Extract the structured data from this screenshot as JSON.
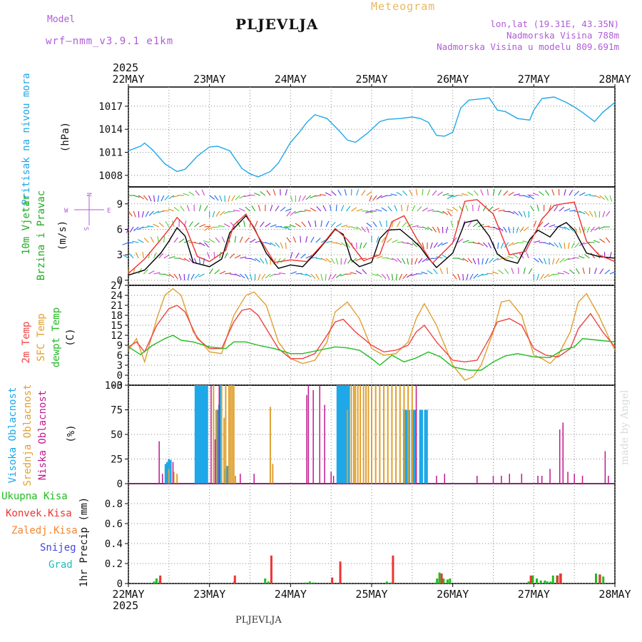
{
  "header": {
    "model_label": "Model",
    "model_version": "wrf—nmm_v3.9.1 e1km",
    "location": "PLJEVLJA",
    "chart_kind": "Meteogram",
    "lonlat": "lon,lat (19.31E, 43.35N)",
    "altitude": "Nadmorska Visina 788m",
    "model_altitude": "Nadmorska Visina u modelu 809.691m"
  },
  "footer": {
    "location": "PLJEVLJA",
    "watermark": "made by Angel"
  },
  "colors": {
    "pressure": "#1ea8e8",
    "temp2m": "#ee4444",
    "sfc": "#e0a030",
    "dewpt": "#22bb22",
    "high_cloud": "#1ea8e8",
    "mid_cloud": "#e0a030",
    "low_cloud": "#c01890",
    "total_precip": "#22bb22",
    "conv_precip": "#ee3333",
    "frz_precip": "#ee8833",
    "snow": "#4444dd",
    "hail": "#22bbbb",
    "wind_label": "#22aa22",
    "compass": "#b05cd8"
  },
  "chart_data": [
    {
      "panel": "pressure",
      "type": "line",
      "ylabel": [
        "Pritisak na nivou mora",
        "(hPa)"
      ],
      "yticks": [
        1008,
        1011,
        1014,
        1017
      ],
      "ylim": [
        1006.5,
        1019.5
      ],
      "xlabels_top": [
        "22MAY",
        "23MAY",
        "24MAY",
        "25MAY",
        "26MAY",
        "27MAY",
        "28MAY"
      ],
      "year_top": "2025",
      "series": [
        {
          "x": [
            0,
            0.15,
            0.2,
            0.3,
            0.45,
            0.6,
            0.7,
            0.85,
            1.0,
            1.1,
            1.25,
            1.4,
            1.5,
            1.6,
            1.75,
            1.85,
            2.0,
            2.1,
            2.2,
            2.3,
            2.45,
            2.6,
            2.7,
            2.8,
            2.95,
            3.1,
            3.2,
            3.35,
            3.5,
            3.6,
            3.7,
            3.8,
            3.9,
            4.0,
            4.1,
            4.2,
            4.3,
            4.45,
            4.55,
            4.65,
            4.8,
            4.95,
            5.0,
            5.1,
            5.25,
            5.4,
            5.5,
            5.6,
            5.75,
            5.85,
            6.0
          ],
          "y": [
            1011.2,
            1011.8,
            1012.2,
            1011.3,
            1009.5,
            1008.5,
            1008.8,
            1010.5,
            1011.7,
            1011.8,
            1011.2,
            1008.9,
            1008.2,
            1007.8,
            1008.5,
            1009.6,
            1012.3,
            1013.5,
            1014.9,
            1015.9,
            1015.4,
            1013.8,
            1012.6,
            1012.3,
            1013.5,
            1015.0,
            1015.3,
            1015.4,
            1015.6,
            1015.4,
            1014.9,
            1013.2,
            1013.1,
            1013.6,
            1016.8,
            1017.8,
            1017.9,
            1018.1,
            1016.5,
            1016.3,
            1015.4,
            1015.2,
            1016.5,
            1018.0,
            1018.2,
            1017.5,
            1016.9,
            1016.2,
            1015.0,
            1016.2,
            1017.5
          ]
        }
      ]
    },
    {
      "panel": "wind",
      "type": "line",
      "ylabel": [
        "10m Vjetar",
        "Brzina i Pravac",
        "(m/s)"
      ],
      "yticks": [
        0,
        3,
        6,
        9
      ],
      "ylim": [
        -0.6,
        11
      ],
      "compass": {
        "north": "N",
        "south": "S",
        "west": "W",
        "east": "E"
      },
      "series": [
        {
          "name": "speed",
          "x": [
            0,
            0.2,
            0.4,
            0.5,
            0.6,
            0.7,
            0.8,
            1.0,
            1.15,
            1.25,
            1.35,
            1.45,
            1.55,
            1.7,
            1.85,
            2.0,
            2.15,
            2.3,
            2.45,
            2.55,
            2.65,
            2.75,
            2.85,
            3.0,
            3.1,
            3.2,
            3.35,
            3.5,
            3.6,
            3.7,
            3.8,
            4.0,
            4.15,
            4.3,
            4.45,
            4.55,
            4.65,
            4.8,
            4.95,
            5.05,
            5.2,
            5.3,
            5.4,
            5.5,
            5.65,
            5.8,
            6.0
          ],
          "y": [
            0.6,
            1.2,
            3.2,
            4.6,
            6.2,
            5.2,
            2.1,
            1.6,
            2.5,
            5.6,
            6.6,
            7.6,
            6.2,
            3.2,
            1.4,
            1.8,
            1.6,
            3.1,
            4.8,
            6.0,
            5.4,
            2.4,
            1.6,
            2.1,
            4.9,
            5.9,
            6.0,
            4.8,
            3.9,
            2.6,
            1.5,
            3.2,
            6.8,
            7.1,
            5.2,
            3.1,
            2.4,
            2.0,
            4.8,
            5.9,
            5.1,
            6.3,
            6.8,
            5.9,
            3.2,
            2.8,
            2.6
          ]
        },
        {
          "name": "gust",
          "x": [
            0,
            0.2,
            0.4,
            0.5,
            0.6,
            0.7,
            0.85,
            1.0,
            1.2,
            1.3,
            1.45,
            1.6,
            1.8,
            2.0,
            2.2,
            2.4,
            2.55,
            2.7,
            2.9,
            3.1,
            3.25,
            3.4,
            3.55,
            3.75,
            4.0,
            4.15,
            4.3,
            4.5,
            4.7,
            4.9,
            5.1,
            5.25,
            5.35,
            5.5,
            5.65,
            5.8,
            6.0
          ],
          "y": [
            0.8,
            2.5,
            4.8,
            6.0,
            7.4,
            6.4,
            2.8,
            2.2,
            3.5,
            6.5,
            7.8,
            5.2,
            2.1,
            2.4,
            2.2,
            4.3,
            6.1,
            4.8,
            2.3,
            3.0,
            6.9,
            7.6,
            5.0,
            2.0,
            4.4,
            9.3,
            9.5,
            7.8,
            3.0,
            3.4,
            7.2,
            8.8,
            9.0,
            9.2,
            4.6,
            3.0,
            2.2
          ]
        }
      ]
    },
    {
      "panel": "temperature",
      "type": "line",
      "ylabel": [
        "2m Temp",
        "SFC Temp",
        "dewpt Temp",
        "(C)"
      ],
      "yticks": [
        -3,
        0,
        3,
        6,
        9,
        12,
        15,
        18,
        21,
        24,
        27
      ],
      "ylim": [
        -3,
        27
      ],
      "series": [
        {
          "name": "2m Temp",
          "x": [
            0,
            0.1,
            0.2,
            0.35,
            0.5,
            0.6,
            0.7,
            0.85,
            1.0,
            1.15,
            1.3,
            1.4,
            1.5,
            1.6,
            1.75,
            1.85,
            2.0,
            2.15,
            2.3,
            2.45,
            2.55,
            2.65,
            2.8,
            3.0,
            3.15,
            3.3,
            3.45,
            3.55,
            3.65,
            3.8,
            4.0,
            4.15,
            4.3,
            4.45,
            4.55,
            4.7,
            4.85,
            5.0,
            5.15,
            5.3,
            5.45,
            5.55,
            5.7,
            5.85,
            6.0
          ],
          "y": [
            8.5,
            10,
            7,
            15,
            20,
            21,
            19,
            11,
            8,
            8,
            16,
            19.5,
            20,
            18,
            12,
            8,
            5,
            5,
            6.5,
            12,
            16,
            16.8,
            13,
            9,
            7,
            7.5,
            9,
            13,
            15,
            10,
            4.5,
            4,
            4.5,
            11,
            16,
            17,
            15,
            8,
            6,
            5.5,
            8,
            14,
            18.5,
            13,
            8.5
          ]
        },
        {
          "name": "SFC Temp",
          "x": [
            0,
            0.1,
            0.2,
            0.35,
            0.45,
            0.55,
            0.65,
            0.8,
            1.0,
            1.15,
            1.3,
            1.45,
            1.55,
            1.7,
            1.85,
            2.0,
            2.15,
            2.3,
            2.45,
            2.55,
            2.7,
            2.85,
            3.0,
            3.15,
            3.3,
            3.45,
            3.55,
            3.65,
            3.8,
            4.0,
            4.15,
            4.25,
            4.35,
            4.5,
            4.6,
            4.7,
            4.85,
            5.0,
            5.1,
            5.2,
            5.3,
            5.45,
            5.55,
            5.65,
            5.8,
            5.95,
            6.0
          ],
          "y": [
            7.5,
            11,
            4,
            17,
            24,
            26,
            24,
            13,
            7,
            6.5,
            18,
            24,
            25,
            21,
            10,
            5,
            3.5,
            4.5,
            10,
            19,
            22,
            17,
            8,
            6,
            6.5,
            10,
            17,
            21.5,
            15,
            3,
            -1.5,
            -0.5,
            3,
            13,
            22,
            22.5,
            18,
            6,
            5,
            3.5,
            6,
            13,
            22,
            24.5,
            18,
            10,
            7.5
          ]
        },
        {
          "name": "dewpt Temp",
          "x": [
            0,
            0.15,
            0.3,
            0.45,
            0.55,
            0.65,
            0.8,
            1.0,
            1.2,
            1.3,
            1.45,
            1.6,
            1.8,
            2.0,
            2.15,
            2.35,
            2.55,
            2.7,
            2.85,
            3.0,
            3.1,
            3.25,
            3.4,
            3.55,
            3.7,
            3.85,
            4.0,
            4.2,
            4.35,
            4.5,
            4.65,
            4.8,
            5.0,
            5.2,
            5.35,
            5.5,
            5.6,
            5.8,
            6.0
          ],
          "y": [
            8.5,
            6.2,
            9,
            11,
            12,
            10.5,
            10,
            8.5,
            8,
            10,
            10,
            9,
            8,
            6.5,
            6.5,
            7.5,
            8.5,
            8.2,
            7.5,
            5,
            3,
            6,
            4,
            5.2,
            7,
            5.5,
            2.5,
            1.5,
            1.5,
            4,
            5.8,
            6.5,
            5.5,
            5.3,
            7.5,
            8.5,
            11,
            10.5,
            10
          ]
        }
      ]
    },
    {
      "panel": "clouds",
      "type": "bar",
      "ylabel": [
        "Visoka Oblacnost",
        "Srednja Oblacnost",
        "Niska Oblacnost",
        "(%)"
      ],
      "yticks": [
        0,
        25,
        50,
        75,
        100
      ],
      "ylim": [
        0,
        100
      ],
      "series": [
        {
          "name": "Visoka Oblacnost",
          "x": [
            0.46,
            0.48,
            0.5,
            0.52,
            0.83,
            0.85,
            0.87,
            0.89,
            0.91,
            0.93,
            0.95,
            0.97,
            1.1,
            1.12,
            1.14,
            1.2,
            1.22,
            2.58,
            2.6,
            2.62,
            2.64,
            2.66,
            2.68,
            2.7,
            2.72,
            3.4,
            3.42,
            3.44,
            3.46,
            3.5,
            3.52,
            3.54,
            3.6,
            3.62,
            3.66,
            3.68
          ],
          "y": [
            20,
            22,
            25,
            24,
            100,
            100,
            100,
            100,
            100,
            100,
            100,
            100,
            75,
            80,
            100,
            15,
            18,
            100,
            100,
            100,
            100,
            100,
            100,
            100,
            100,
            75,
            75,
            75,
            75,
            75,
            75,
            75,
            75,
            75,
            75,
            75
          ]
        },
        {
          "name": "Srednja Oblacnost",
          "x": [
            0.5,
            0.56,
            0.6,
            1.05,
            1.08,
            1.15,
            1.18,
            1.2,
            1.24,
            1.26,
            1.28,
            1.3,
            1.32,
            1.75,
            1.78,
            2.7,
            2.75,
            2.78,
            2.8,
            2.83,
            2.86,
            2.9,
            2.93,
            2.96,
            3.0,
            3.05,
            3.1,
            3.15,
            3.2,
            3.25,
            3.3,
            3.35,
            3.4,
            3.45,
            3.5
          ],
          "y": [
            15,
            12,
            10,
            100,
            75,
            100,
            67,
            100,
            100,
            100,
            100,
            100,
            8,
            78,
            20,
            75,
            100,
            100,
            100,
            100,
            100,
            100,
            100,
            100,
            100,
            100,
            100,
            100,
            100,
            100,
            100,
            100,
            100,
            100,
            100
          ]
        },
        {
          "name": "Niska Oblacnost",
          "x": [
            0.38,
            0.42,
            0.55,
            1.02,
            1.07,
            1.12,
            1.38,
            1.55,
            2.2,
            2.22,
            2.28,
            2.36,
            2.42,
            2.5,
            2.53,
            3.55,
            3.8,
            3.9,
            4.3,
            4.5,
            4.6,
            4.7,
            4.85,
            5.05,
            5.1,
            5.2,
            5.32,
            5.36,
            5.42,
            5.5,
            5.6,
            5.88,
            5.92
          ],
          "y": [
            43,
            10,
            22,
            100,
            45,
            100,
            10,
            10,
            90,
            100,
            95,
            100,
            80,
            12,
            8,
            100,
            8,
            10,
            8,
            8,
            8,
            10,
            10,
            8,
            8,
            15,
            55,
            62,
            12,
            10,
            8,
            33,
            8
          ]
        }
      ]
    },
    {
      "panel": "precipitation",
      "type": "bar",
      "ylabel": [
        "1hr Precip (mm)"
      ],
      "legend": [
        "Ukupna Kisa",
        "Konvek.Kisa",
        "Zaledj.Kisa",
        "Snijeg",
        "Grad"
      ],
      "yticks": [
        0,
        0.2,
        0.4,
        0.6,
        0.8
      ],
      "ylim": [
        0,
        1.0
      ],
      "series": [
        {
          "name": "Ukupna Kisa",
          "x": [
            0.33,
            0.36,
            0.4,
            1.32,
            1.7,
            1.74,
            2.2,
            2.25,
            2.3,
            3.2,
            3.25,
            3.8,
            3.82,
            3.85,
            3.9,
            3.95,
            3.98,
            4.95,
            5.0,
            5.05,
            5.1,
            5.15,
            5.18,
            5.22,
            5.25,
            5.3,
            5.34,
            5.78,
            5.83,
            5.87
          ],
          "y": [
            0.02,
            0.05,
            0.03,
            0.02,
            0.05,
            0.02,
            0.01,
            0.02,
            0.01,
            0.02,
            0.01,
            0.01,
            0.05,
            0.11,
            0.05,
            0.04,
            0.05,
            0.02,
            0.08,
            0.05,
            0.03,
            0.03,
            0.02,
            0.02,
            0.08,
            0.08,
            0.1,
            0.1,
            0.09,
            0.07
          ]
        },
        {
          "name": "Konvek.Kisa",
          "x": [
            0.38,
            1.3,
            1.75,
            2.5,
            2.6,
            3.25,
            3.85,
            4.95,
            5.28,
            5.32,
            5.8
          ],
          "y": [
            0.08,
            0.08,
            0.28,
            0.06,
            0.22,
            0.28,
            0.1,
            0.08,
            0.08,
            0.1,
            0.09
          ]
        }
      ]
    }
  ],
  "x_axis": {
    "labels": [
      "22MAY",
      "23MAY",
      "24MAY",
      "25MAY",
      "26MAY",
      "27MAY",
      "28MAY"
    ],
    "year": "2025"
  }
}
